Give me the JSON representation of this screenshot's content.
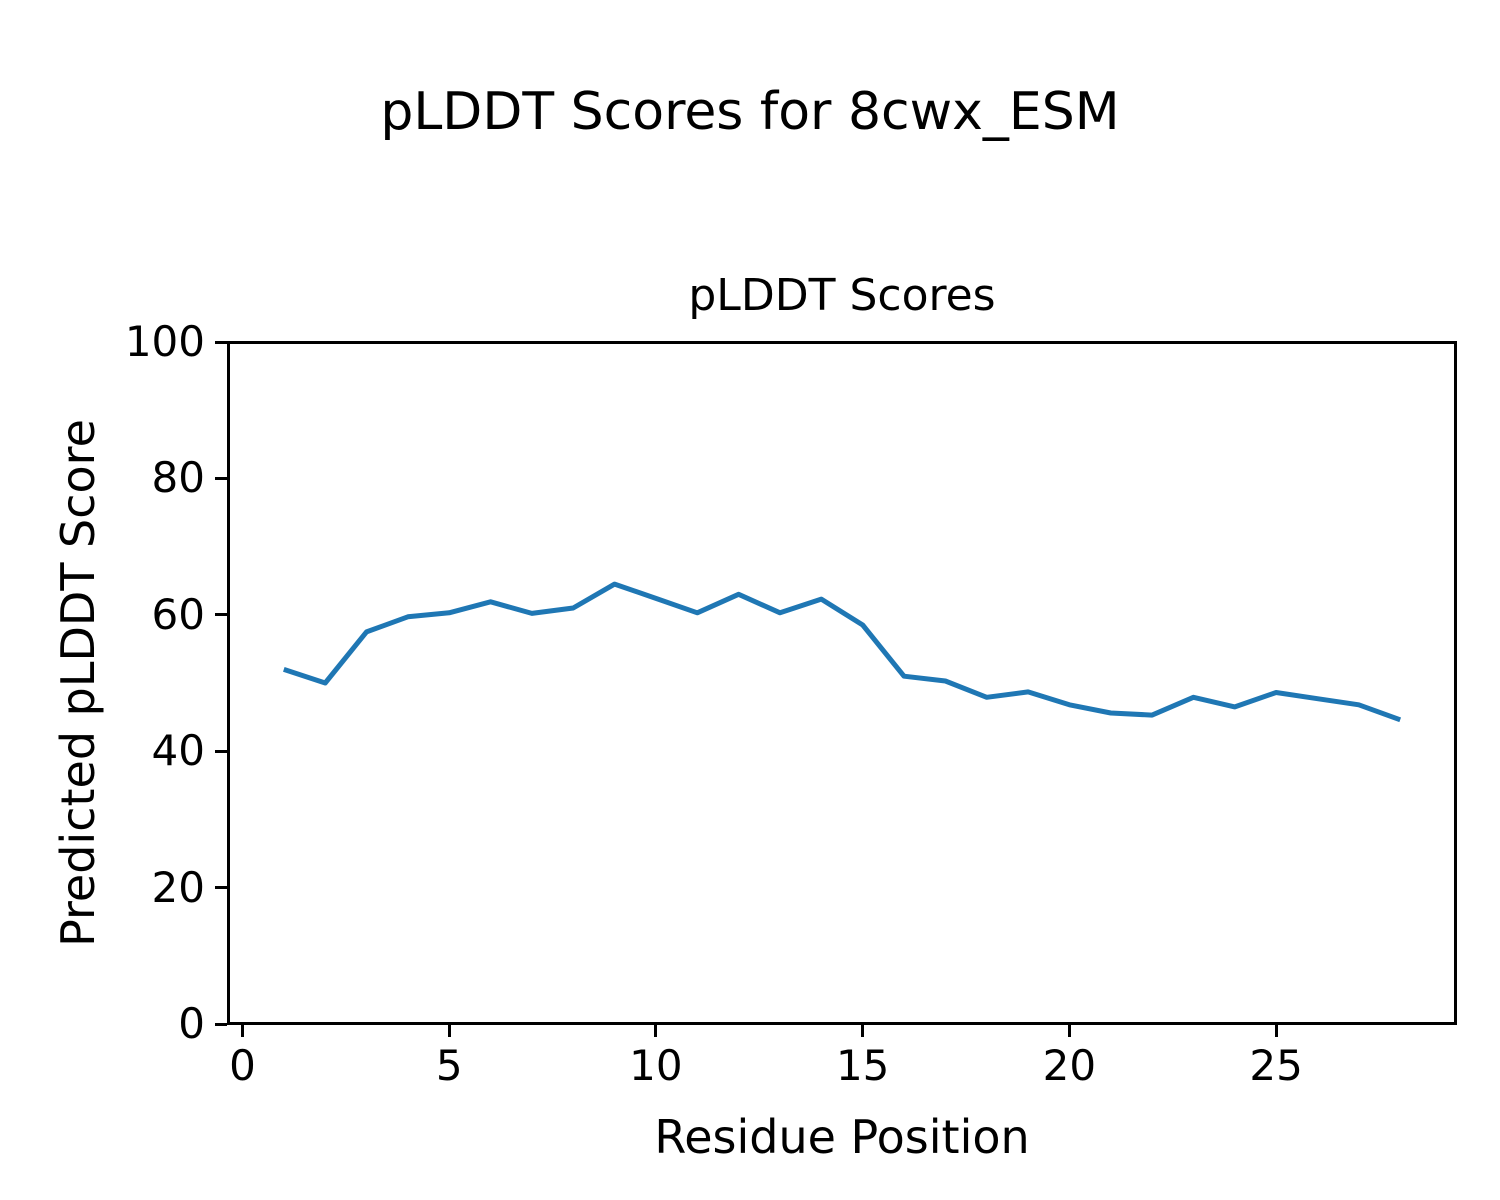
{
  "figure": {
    "suptitle": "pLDDT Scores for 8cwx_ESM",
    "background_color": "#ffffff",
    "text_color": "#000000"
  },
  "chart_data": {
    "type": "line",
    "title": "pLDDT Scores",
    "xlabel": "Residue Position",
    "ylabel": "Predicted pLDDT Score",
    "x": [
      1,
      2,
      3,
      4,
      5,
      6,
      7,
      8,
      9,
      10,
      11,
      12,
      13,
      14,
      15,
      16,
      17,
      18,
      19,
      20,
      21,
      22,
      23,
      24,
      25,
      26,
      27,
      28
    ],
    "series": [
      {
        "name": "pLDDT",
        "color": "#1f77b4",
        "values": [
          52.0,
          50.0,
          57.5,
          59.7,
          60.3,
          61.9,
          60.2,
          61.0,
          64.5,
          62.4,
          60.3,
          63.0,
          60.3,
          62.3,
          58.5,
          51.0,
          50.3,
          47.9,
          48.7,
          46.8,
          45.6,
          45.3,
          47.9,
          46.5,
          48.6,
          47.7,
          46.8,
          44.6
        ]
      }
    ],
    "xlim": [
      -0.35,
      29.35
    ],
    "ylim": [
      0,
      100
    ],
    "xticks": [
      0,
      5,
      10,
      15,
      20,
      25
    ],
    "yticks": [
      0,
      20,
      40,
      60,
      80,
      100
    ],
    "grid": false,
    "legend_position": "none"
  }
}
